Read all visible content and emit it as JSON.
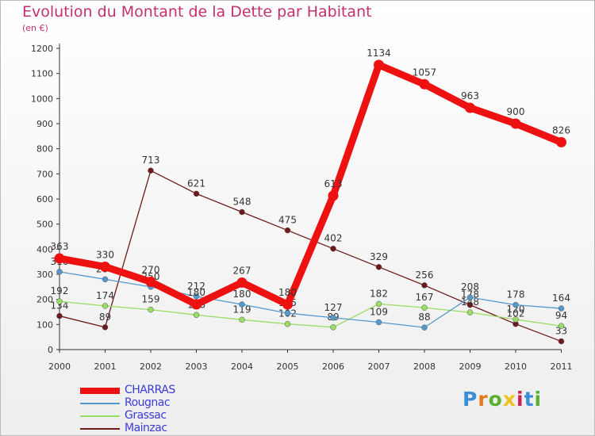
{
  "title": "Evolution du Montant de la Dette par Habitant",
  "subtitle": "(en €)",
  "logo_text": "Proxiti",
  "chart_data": {
    "type": "line",
    "title": "Evolution du Montant de la Dette par Habitant",
    "subtitle": "(en €)",
    "x": [
      "2000",
      "2001",
      "2002",
      "2003",
      "2004",
      "2005",
      "2006",
      "2007",
      "2008",
      "2009",
      "2010",
      "2011"
    ],
    "ylim": [
      0,
      1200
    ],
    "yticks": [
      0,
      100,
      200,
      300,
      400,
      500,
      600,
      700,
      800,
      900,
      1000,
      1100,
      1200
    ],
    "grid": false,
    "legend_position": "bottom-left",
    "series": [
      {
        "name": "Mainzac",
        "color": "#6e1a1a",
        "values": [
          134,
          89,
          713,
          621,
          548,
          475,
          402,
          329,
          256,
          178,
          102,
          33
        ]
      },
      {
        "name": "Grassac",
        "color": "#99dd66",
        "values": [
          192,
          174,
          159,
          138,
          119,
          102,
          89,
          182,
          167,
          148,
          120,
          94
        ]
      },
      {
        "name": "Rougnac",
        "color": "#5599cc",
        "values": [
          310,
          280,
          250,
          212,
          180,
          145,
          127,
          109,
          88,
          208,
          178,
          164
        ]
      },
      {
        "name": "CHARRAS",
        "color": "#ee1111",
        "values": [
          363,
          330,
          270,
          180,
          267,
          180,
          613,
          1134,
          1057,
          963,
          900,
          826
        ]
      }
    ],
    "legend": [
      "CHARRAS",
      "Rougnac",
      "Grassac",
      "Mainzac"
    ]
  }
}
